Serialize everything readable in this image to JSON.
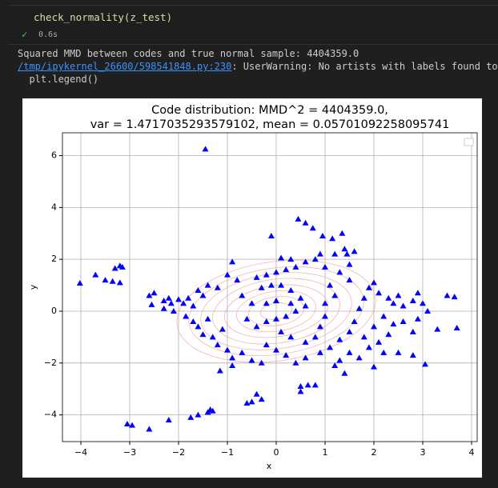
{
  "cell": {
    "code": "check_normality(z_test)",
    "time": "0.6s"
  },
  "output": {
    "line1": "Squared MMD between codes and true normal sample: 4404359.0",
    "link": "/tmp/ipykernel_26600/598541848.py:230",
    "warning": ": UserWarning: No artists with labels found to pu",
    "line3": "  plt.legend()"
  },
  "chart_data": {
    "type": "scatter",
    "title": "Code distribution: MMD^2 = 4404359.0,",
    "subtitle": "var = 1.4717035293579102, mean = 0.05701092258095741",
    "x_label": "x",
    "y_label": "y",
    "color": "#0000ff",
    "grid": true,
    "xlim": [
      -4.377,
      4.115
    ],
    "ylim": [
      -5.03,
      6.88
    ],
    "xticks": [
      {
        "value": -4,
        "label": "−4"
      },
      {
        "value": -3,
        "label": "−3"
      },
      {
        "value": -2,
        "label": "−2"
      },
      {
        "value": -1,
        "label": "−1"
      },
      0,
      1,
      2,
      3,
      4
    ],
    "yticks": [
      {
        "value": -4,
        "label": "−4"
      },
      {
        "value": -2,
        "label": "−2"
      },
      0,
      2,
      4,
      6
    ],
    "x": [
      -1.45,
      -4.02,
      -3.7,
      -3.5,
      -3.35,
      -3.2,
      -3.3,
      -3.2,
      -3.15,
      -3.05,
      -2.95,
      -2.6,
      -2.2,
      -1.75,
      -1.6,
      -1.4,
      -1.3,
      -1.35,
      -0.6,
      -0.5,
      -0.3,
      -0.4,
      0.5,
      0.65,
      0.8,
      0.5,
      3.7,
      3.5,
      3.65,
      3.3,
      3.05,
      2.8,
      2.0,
      1.4,
      -1.15,
      -0.9,
      0.45,
      0.6,
      0.75,
      0.95,
      1.15,
      1.35,
      1.4,
      1.45,
      -0.1,
      -2.6,
      -2.5,
      -2.55,
      -2.3,
      -2.2,
      -2.15,
      -2.0,
      -1.9,
      -2.3,
      -2.1,
      -1.8,
      -1.7,
      -1.6,
      -1.5,
      -1.85,
      -1.7,
      -1.6,
      -1.5,
      -1.4,
      -1.3,
      -1.2,
      -1.0,
      -1.1,
      -1.4,
      -1.2,
      -1.0,
      -0.9,
      -0.8,
      -0.7,
      -0.6,
      -0.5,
      -0.9,
      -0.7,
      -0.5,
      -0.3,
      -0.2,
      -0.4,
      -0.2,
      0.0,
      0.2,
      0.4,
      0.6,
      0.8,
      0.9,
      0.3,
      0.1,
      -0.3,
      -0.1,
      0.1,
      0.3,
      0.5,
      0.6,
      0.4,
      0.2,
      0.0,
      -0.2,
      -0.4,
      -0.2,
      0.0,
      0.3,
      0.1,
      0.3,
      0.6,
      0.8,
      0.9,
      1.0,
      1.0,
      1.2,
      1.1,
      1.3,
      1.5,
      1.6,
      1.2,
      1.0,
      0.0,
      0.2,
      0.4,
      0.6,
      0.9,
      1.1,
      1.3,
      1.5,
      1.6,
      1.7,
      1.8,
      1.9,
      2.0,
      1.5,
      2.1,
      2.3,
      2.4,
      2.5,
      2.6,
      2.8,
      2.9,
      3.0,
      2.2,
      2.4,
      2.6,
      2.8,
      2.9,
      3.1,
      2.0,
      1.8,
      1.9,
      2.1,
      2.3,
      1.7,
      1.5,
      1.3,
      1.2,
      2.2,
      2.5
    ],
    "values": [
      6.25,
      1.08,
      1.4,
      1.2,
      1.15,
      1.1,
      1.65,
      1.75,
      1.7,
      -4.35,
      -4.4,
      -4.55,
      -4.2,
      -4.1,
      -4.0,
      -3.9,
      -3.85,
      -3.8,
      -3.55,
      -3.5,
      -3.4,
      -3.2,
      -2.9,
      -2.85,
      -2.85,
      -3.1,
      -0.65,
      0.6,
      0.55,
      -0.7,
      -2.05,
      -1.7,
      -2.15,
      -2.4,
      -2.3,
      -2.1,
      3.55,
      3.4,
      3.2,
      2.9,
      2.8,
      3.0,
      2.4,
      2.2,
      2.9,
      0.6,
      0.7,
      0.25,
      0.4,
      0.5,
      0.3,
      0.45,
      0.3,
      0.1,
      0.0,
      0.5,
      0.2,
      0.8,
      0.6,
      -0.2,
      -0.4,
      -0.6,
      -0.9,
      -0.3,
      -1.0,
      -1.3,
      -1.5,
      -0.7,
      1.0,
      0.9,
      1.4,
      1.9,
      1.2,
      0.6,
      -0.3,
      0.3,
      -1.8,
      -1.6,
      -1.9,
      -2.0,
      -1.3,
      1.3,
      1.4,
      1.5,
      1.6,
      1.7,
      1.9,
      2.0,
      2.2,
      2.0,
      2.05,
      0.9,
      1.0,
      1.0,
      0.8,
      0.5,
      0.2,
      0.0,
      -0.2,
      -0.3,
      -0.4,
      -0.6,
      0.3,
      0.4,
      0.3,
      -0.8,
      -1.0,
      -1.2,
      -1.0,
      -0.6,
      -0.2,
      0.3,
      0.6,
      1.0,
      1.5,
      1.8,
      2.3,
      2.2,
      1.7,
      -1.5,
      -1.7,
      -2.0,
      -1.8,
      -1.6,
      -1.4,
      -1.1,
      -0.8,
      -0.4,
      0.1,
      0.5,
      0.9,
      1.1,
      1.2,
      0.7,
      0.5,
      0.3,
      0.6,
      0.2,
      0.4,
      0.7,
      0.3,
      -0.2,
      -0.5,
      -0.4,
      -0.8,
      -0.3,
      0.0,
      -0.6,
      -1.0,
      -1.4,
      -1.2,
      -0.9,
      -1.8,
      -1.6,
      -1.9,
      -2.1,
      -1.6,
      -1.6
    ]
  }
}
